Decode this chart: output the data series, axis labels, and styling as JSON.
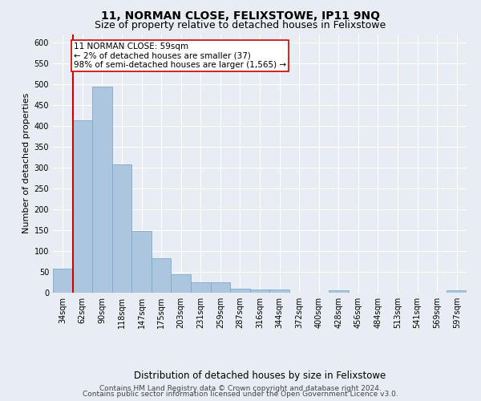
{
  "title": "11, NORMAN CLOSE, FELIXSTOWE, IP11 9NQ",
  "subtitle": "Size of property relative to detached houses in Felixstowe",
  "xlabel": "Distribution of detached houses by size in Felixstowe",
  "ylabel": "Number of detached properties",
  "categories": [
    "34sqm",
    "62sqm",
    "90sqm",
    "118sqm",
    "147sqm",
    "175sqm",
    "203sqm",
    "231sqm",
    "259sqm",
    "287sqm",
    "316sqm",
    "344sqm",
    "372sqm",
    "400sqm",
    "428sqm",
    "456sqm",
    "484sqm",
    "513sqm",
    "541sqm",
    "569sqm",
    "597sqm"
  ],
  "values": [
    57,
    413,
    495,
    307,
    148,
    82,
    44,
    25,
    25,
    10,
    7,
    7,
    0,
    0,
    5,
    0,
    0,
    0,
    0,
    0,
    5
  ],
  "bar_color": "#adc6df",
  "bar_edge_color": "#7aaacb",
  "vline_color": "#cc0000",
  "annotation_text": "11 NORMAN CLOSE: 59sqm\n← 2% of detached houses are smaller (37)\n98% of semi-detached houses are larger (1,565) →",
  "annotation_box_color": "#ffffff",
  "annotation_box_edge_color": "#cc0000",
  "ylim": [
    0,
    620
  ],
  "yticks": [
    0,
    50,
    100,
    150,
    200,
    250,
    300,
    350,
    400,
    450,
    500,
    550,
    600
  ],
  "footer_line1": "Contains HM Land Registry data © Crown copyright and database right 2024.",
  "footer_line2": "Contains public sector information licensed under the Open Government Licence v3.0.",
  "background_color": "#e8edf3",
  "plot_background_color": "#e8edf3",
  "grid_color": "#ffffff",
  "title_fontsize": 10,
  "subtitle_fontsize": 9,
  "xlabel_fontsize": 8.5,
  "ylabel_fontsize": 8,
  "tick_fontsize": 7,
  "footer_fontsize": 6.5,
  "annotation_fontsize": 7.5
}
